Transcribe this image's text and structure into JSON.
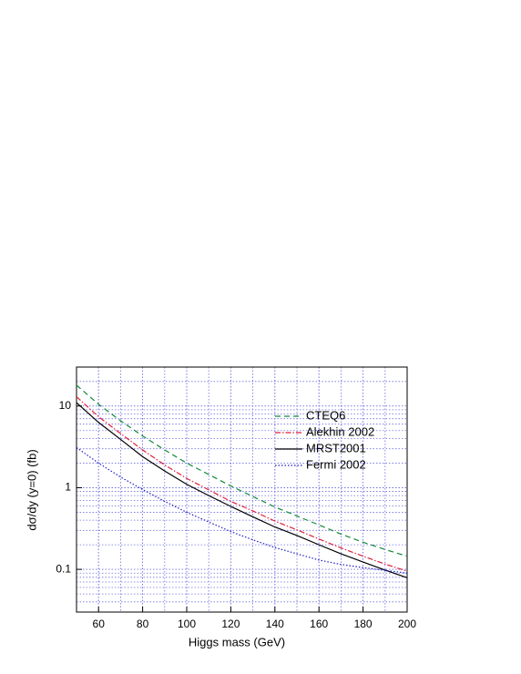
{
  "chart_data": {
    "type": "line",
    "x_label": "Higgs mass (GeV)",
    "y_label": "dσ/dy (y=0) (fb)",
    "x": [
      50,
      60,
      70,
      80,
      90,
      100,
      110,
      120,
      130,
      140,
      150,
      160,
      170,
      180,
      190,
      200
    ],
    "series": [
      {
        "name": "CTEQ6",
        "color": "#138a3a",
        "dash": "6 4",
        "values": [
          18,
          10.5,
          6.6,
          4.3,
          2.9,
          2.0,
          1.45,
          1.05,
          0.78,
          0.58,
          0.45,
          0.35,
          0.27,
          0.215,
          0.175,
          0.145
        ]
      },
      {
        "name": "Alekhin 2002",
        "color": "#e0203a",
        "dash": "6 2 1.5 2",
        "values": [
          13,
          7.4,
          4.6,
          2.9,
          1.9,
          1.3,
          0.94,
          0.68,
          0.52,
          0.39,
          0.305,
          0.235,
          0.183,
          0.145,
          0.116,
          0.095
        ]
      },
      {
        "name": "MRST2001",
        "color": "#000000",
        "dash": "",
        "values": [
          11,
          6.3,
          3.9,
          2.4,
          1.6,
          1.1,
          0.8,
          0.59,
          0.44,
          0.33,
          0.26,
          0.2,
          0.155,
          0.123,
          0.098,
          0.079
        ]
      },
      {
        "name": "Fermi 2002",
        "color": "#2020c0",
        "dash": "1.5 2",
        "values": [
          3.1,
          2.0,
          1.35,
          0.95,
          0.68,
          0.5,
          0.38,
          0.29,
          0.23,
          0.185,
          0.155,
          0.13,
          0.115,
          0.105,
          0.097,
          0.09
        ]
      }
    ],
    "xlim": [
      50,
      200
    ],
    "xticks": [
      60,
      80,
      100,
      120,
      140,
      160,
      180,
      200
    ],
    "ylim": [
      0.03,
      30
    ],
    "yticks": [
      0.1,
      1,
      10
    ],
    "log_y": true,
    "grid": true,
    "legend": "upper right"
  }
}
